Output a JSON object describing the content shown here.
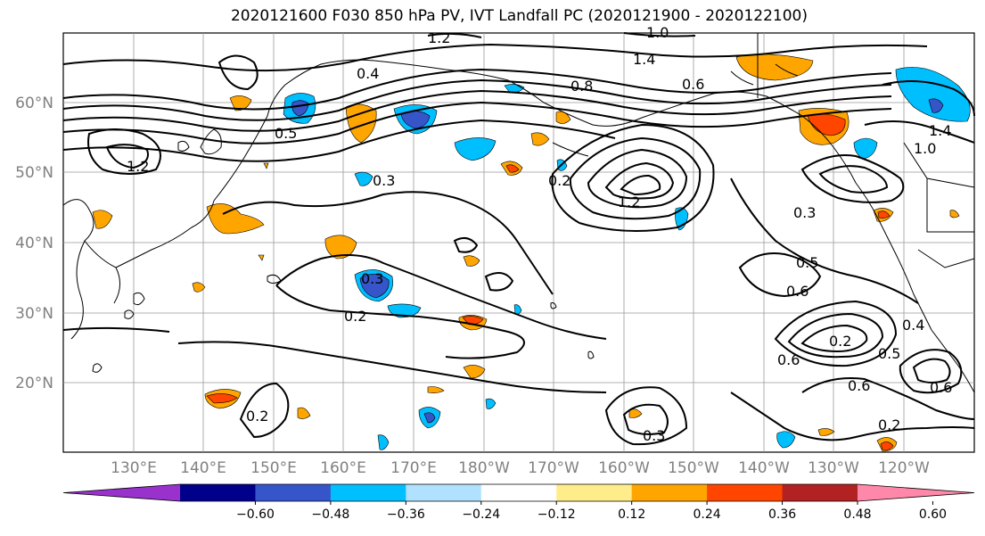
{
  "title": "2020121600 F030 850 hPa PV, IVT Landfall PC (2020121900 - 2020122100)",
  "lat_labels": [
    "60°N",
    "50°N",
    "40°N",
    "30°N",
    "20°N"
  ],
  "lon_labels": [
    "130°E",
    "140°E",
    "150°E",
    "160°E",
    "170°E",
    "180°W",
    "170°W",
    "160°W",
    "150°W",
    "140°W",
    "130°W",
    "120°W"
  ],
  "contour_labels": [
    "1.2",
    "1.0",
    "1.4",
    "0.8",
    "0.6",
    "0.4",
    "0.3",
    "0.2",
    "0.5",
    "1.2",
    "0.3",
    "0.2",
    "0.6",
    "0.5",
    "0.2",
    "0.4",
    "0.6",
    "0.5",
    "0.3",
    "0.6",
    "0.2",
    "0.3",
    "1.2",
    "1.4",
    "1.0"
  ],
  "colorbar": {
    "ticks": [
      "−0.60",
      "−0.48",
      "−0.36",
      "−0.24",
      "−0.12",
      "0.12",
      "0.24",
      "0.36",
      "0.48",
      "0.60"
    ],
    "colors": [
      "#9932cc",
      "#00008b",
      "#3655c8",
      "#00bfff",
      "#b0e2ff",
      "#ffffff",
      "#ffec8b",
      "#ffa500",
      "#ff4500",
      "#b22222",
      "#ff88aa"
    ]
  }
}
